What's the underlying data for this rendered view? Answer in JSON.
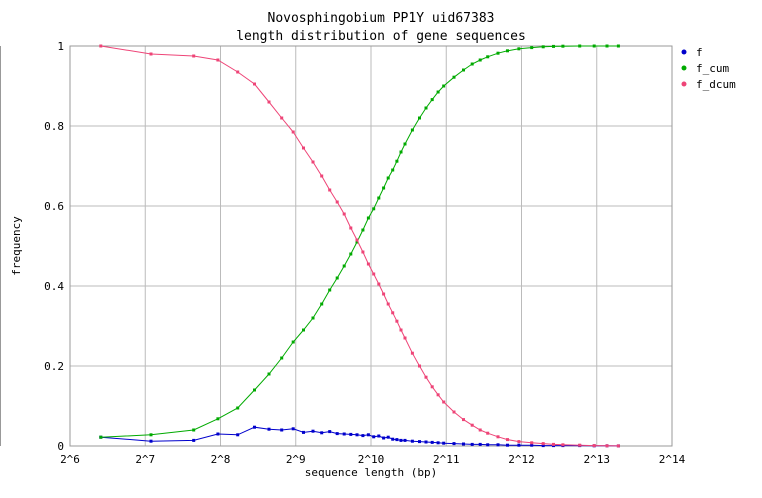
{
  "chart_data": {
    "type": "line",
    "title": "Novosphingobium PP1Y uid67383",
    "subtitle": "length distribution of gene sequences",
    "xlabel": "sequence length (bp)",
    "ylabel": "frequency",
    "x_scale": "log2",
    "xlim": [
      64,
      16384
    ],
    "ylim": [
      0,
      1
    ],
    "x_ticks": [
      "2^6",
      "2^7",
      "2^8",
      "2^9",
      "2^10",
      "2^11",
      "2^12",
      "2^13",
      "2^14"
    ],
    "y_ticks": [
      "0",
      "0.2",
      "0.4",
      "0.6",
      "0.8",
      "1"
    ],
    "grid": true,
    "legend_position": "right",
    "series": [
      {
        "name": "f",
        "color": "#0000cc",
        "x": [
          85,
          135,
          200,
          250,
          300,
          350,
          400,
          450,
          500,
          550,
          600,
          650,
          700,
          750,
          800,
          850,
          900,
          950,
          1000,
          1050,
          1100,
          1150,
          1200,
          1250,
          1300,
          1350,
          1400,
          1500,
          1600,
          1700,
          1800,
          1900,
          2000,
          2200,
          2400,
          2600,
          2800,
          3000,
          3300,
          3600,
          4000,
          4500,
          5000,
          5500,
          6000,
          7000,
          8000,
          9000,
          10000
        ],
        "y": [
          0.022,
          0.012,
          0.014,
          0.03,
          0.028,
          0.047,
          0.042,
          0.04,
          0.043,
          0.034,
          0.037,
          0.033,
          0.036,
          0.031,
          0.03,
          0.029,
          0.028,
          0.026,
          0.028,
          0.023,
          0.025,
          0.02,
          0.022,
          0.017,
          0.016,
          0.014,
          0.014,
          0.012,
          0.011,
          0.01,
          0.009,
          0.008,
          0.007,
          0.006,
          0.005,
          0.004,
          0.004,
          0.003,
          0.003,
          0.002,
          0.002,
          0.002,
          0.001,
          0.001,
          0.001,
          0.001,
          0.0005,
          0.0005,
          0.0003
        ]
      },
      {
        "name": "f_cum",
        "color": "#00aa00",
        "x": [
          85,
          135,
          200,
          250,
          300,
          350,
          400,
          450,
          500,
          550,
          600,
          650,
          700,
          750,
          800,
          850,
          900,
          950,
          1000,
          1050,
          1100,
          1150,
          1200,
          1250,
          1300,
          1350,
          1400,
          1500,
          1600,
          1700,
          1800,
          1900,
          2000,
          2200,
          2400,
          2600,
          2800,
          3000,
          3300,
          3600,
          4000,
          4500,
          5000,
          5500,
          6000,
          7000,
          8000,
          9000,
          10000
        ],
        "y": [
          0.022,
          0.028,
          0.04,
          0.068,
          0.095,
          0.14,
          0.18,
          0.22,
          0.26,
          0.29,
          0.32,
          0.355,
          0.39,
          0.42,
          0.45,
          0.48,
          0.51,
          0.54,
          0.57,
          0.593,
          0.62,
          0.645,
          0.67,
          0.69,
          0.712,
          0.735,
          0.755,
          0.79,
          0.82,
          0.845,
          0.866,
          0.885,
          0.9,
          0.922,
          0.94,
          0.955,
          0.965,
          0.973,
          0.982,
          0.988,
          0.993,
          0.996,
          0.998,
          0.999,
          0.9995,
          1.0,
          1.0,
          1.0,
          1.0
        ]
      },
      {
        "name": "f_dcum",
        "color": "#ee4477",
        "x": [
          85,
          135,
          200,
          250,
          300,
          350,
          400,
          450,
          500,
          550,
          600,
          650,
          700,
          750,
          800,
          850,
          900,
          950,
          1000,
          1050,
          1100,
          1150,
          1200,
          1250,
          1300,
          1350,
          1400,
          1500,
          1600,
          1700,
          1800,
          1900,
          2000,
          2200,
          2400,
          2600,
          2800,
          3000,
          3300,
          3600,
          4000,
          4500,
          5000,
          5500,
          6000,
          7000,
          8000,
          9000,
          10000
        ],
        "y": [
          1.0,
          0.98,
          0.975,
          0.965,
          0.935,
          0.905,
          0.86,
          0.82,
          0.785,
          0.745,
          0.71,
          0.675,
          0.64,
          0.61,
          0.58,
          0.545,
          0.515,
          0.485,
          0.455,
          0.43,
          0.405,
          0.38,
          0.355,
          0.333,
          0.312,
          0.29,
          0.27,
          0.232,
          0.2,
          0.172,
          0.148,
          0.128,
          0.11,
          0.085,
          0.066,
          0.052,
          0.04,
          0.032,
          0.023,
          0.016,
          0.011,
          0.008,
          0.006,
          0.004,
          0.003,
          0.002,
          0.001,
          0.0005,
          0.0003
        ]
      }
    ]
  }
}
